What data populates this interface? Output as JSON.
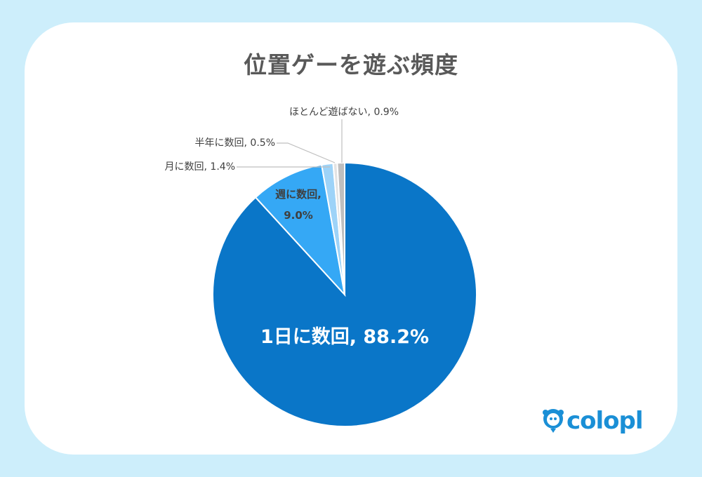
{
  "chart_data": {
    "type": "pie",
    "title": "位置ゲーを遊ぶ頻度",
    "slices": [
      {
        "label": "1日に数回, 88.2%",
        "name": "1日に数回",
        "value": 88.2,
        "color": "#0a76c8"
      },
      {
        "label": "週に数回,",
        "label2": "9.0%",
        "name": "週に数回",
        "value": 9.0,
        "color": "#35a8f5"
      },
      {
        "label": "月に数回, 1.4%",
        "name": "月に数回",
        "value": 1.4,
        "color": "#9dd3f8"
      },
      {
        "label": "半年に数回, 0.5%",
        "name": "半年に数回",
        "value": 0.5,
        "color": "#e3e3e3"
      },
      {
        "label": "ほとんど遊ばない, 0.9%",
        "name": "ほとんど遊ばない",
        "value": 0.9,
        "color": "#bfbfbf"
      }
    ],
    "label_style": "category, percent"
  },
  "logo": {
    "text": "colopl",
    "icon": "colopl-mascot-icon",
    "color": "#1a8fd6"
  }
}
